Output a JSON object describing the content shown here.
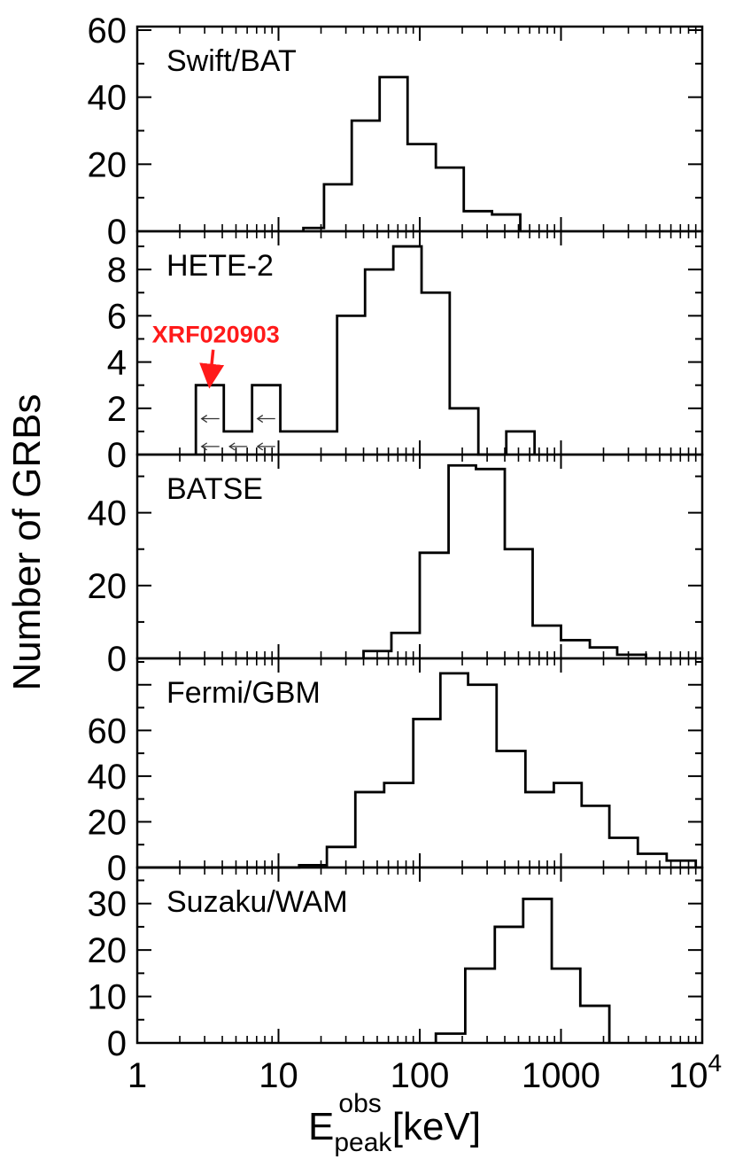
{
  "figure": {
    "ylabel": "Number of GRBs",
    "xlabel": {
      "main": "E",
      "sup": "obs",
      "sub": "peak",
      "unit": "[keV]"
    },
    "xaxis": {
      "scale": "log",
      "range": [
        1,
        10000
      ],
      "tick_labels": [
        {
          "value": 1,
          "base": "1",
          "exp": ""
        },
        {
          "value": 10,
          "base": "10",
          "exp": ""
        },
        {
          "value": 100,
          "base": "100",
          "exp": ""
        },
        {
          "value": 1000,
          "base": "1000",
          "exp": ""
        },
        {
          "value": 10000,
          "base": "10",
          "exp": "4"
        }
      ]
    },
    "colors": {
      "line": "#000000",
      "annotation": "#ff1a1a"
    }
  },
  "chart_data": [
    {
      "type": "histogram",
      "title": "Swift/BAT",
      "ylim": [
        0,
        60
      ],
      "yticks": [
        0,
        20,
        40,
        60
      ],
      "bins": [
        {
          "x0": 15,
          "x1": 21,
          "y": 1
        },
        {
          "x0": 21,
          "x1": 33,
          "y": 14
        },
        {
          "x0": 33,
          "x1": 52,
          "y": 33
        },
        {
          "x0": 52,
          "x1": 82,
          "y": 46
        },
        {
          "x0": 82,
          "x1": 130,
          "y": 26
        },
        {
          "x0": 130,
          "x1": 205,
          "y": 19
        },
        {
          "x0": 205,
          "x1": 325,
          "y": 6
        },
        {
          "x0": 325,
          "x1": 515,
          "y": 5
        }
      ]
    },
    {
      "type": "histogram",
      "title": "HETE-2",
      "ylim": [
        0,
        9.5
      ],
      "yticks": [
        0,
        2,
        4,
        6,
        8
      ],
      "bins": [
        {
          "x0": 2.6,
          "x1": 4.1,
          "y": 3
        },
        {
          "x0": 4.1,
          "x1": 6.5,
          "y": 1
        },
        {
          "x0": 6.5,
          "x1": 10.3,
          "y": 3
        },
        {
          "x0": 10.3,
          "x1": 26,
          "y": 1
        },
        {
          "x0": 26,
          "x1": 41,
          "y": 6
        },
        {
          "x0": 41,
          "x1": 65,
          "y": 8
        },
        {
          "x0": 65,
          "x1": 103,
          "y": 9
        },
        {
          "x0": 103,
          "x1": 163,
          "y": 7
        },
        {
          "x0": 163,
          "x1": 260,
          "y": 2
        },
        {
          "x0": 260,
          "x1": 410,
          "y": 0
        },
        {
          "x0": 410,
          "x1": 650,
          "y": 1
        }
      ],
      "upper_limit_markers": [
        {
          "x": 3.3,
          "y": 1.55
        },
        {
          "x": 8.2,
          "y": 1.55
        },
        {
          "x": 3.3,
          "y": 0.35
        },
        {
          "x": 5.2,
          "y": 0.35
        },
        {
          "x": 8.2,
          "y": 0.35
        }
      ],
      "annotation": {
        "text": "XRF020903",
        "x": 3.3,
        "y": 3
      }
    },
    {
      "type": "histogram",
      "title": "BATSE",
      "ylim": [
        0,
        55
      ],
      "yticks": [
        0,
        20,
        40
      ],
      "bins": [
        {
          "x0": 40,
          "x1": 63,
          "y": 2
        },
        {
          "x0": 63,
          "x1": 100,
          "y": 7
        },
        {
          "x0": 100,
          "x1": 160,
          "y": 29
        },
        {
          "x0": 160,
          "x1": 250,
          "y": 53
        },
        {
          "x0": 250,
          "x1": 400,
          "y": 52
        },
        {
          "x0": 400,
          "x1": 630,
          "y": 30
        },
        {
          "x0": 630,
          "x1": 1000,
          "y": 9
        },
        {
          "x0": 1000,
          "x1": 1600,
          "y": 5
        },
        {
          "x0": 1600,
          "x1": 2500,
          "y": 3
        },
        {
          "x0": 2500,
          "x1": 4000,
          "y": 1
        }
      ]
    },
    {
      "type": "histogram",
      "title": "Fermi/GBM",
      "ylim": [
        0,
        90
      ],
      "yticks": [
        0,
        20,
        40,
        60
      ],
      "bins": [
        {
          "x0": 1,
          "x1": 14,
          "y": 0
        },
        {
          "x0": 14,
          "x1": 22,
          "y": 1
        },
        {
          "x0": 22,
          "x1": 35,
          "y": 9
        },
        {
          "x0": 35,
          "x1": 56,
          "y": 33
        },
        {
          "x0": 56,
          "x1": 90,
          "y": 37
        },
        {
          "x0": 90,
          "x1": 140,
          "y": 65
        },
        {
          "x0": 140,
          "x1": 220,
          "y": 85
        },
        {
          "x0": 220,
          "x1": 350,
          "y": 80
        },
        {
          "x0": 350,
          "x1": 560,
          "y": 51
        },
        {
          "x0": 560,
          "x1": 890,
          "y": 33
        },
        {
          "x0": 890,
          "x1": 1400,
          "y": 37
        },
        {
          "x0": 1400,
          "x1": 2200,
          "y": 27
        },
        {
          "x0": 2200,
          "x1": 3500,
          "y": 13
        },
        {
          "x0": 3500,
          "x1": 5600,
          "y": 6
        },
        {
          "x0": 5600,
          "x1": 9000,
          "y": 3
        }
      ]
    },
    {
      "type": "histogram",
      "title": "Suzaku/WAM",
      "ylim": [
        0,
        37
      ],
      "yticks": [
        0,
        10,
        20,
        30
      ],
      "bins": [
        {
          "x0": 130,
          "x1": 210,
          "y": 2
        },
        {
          "x0": 210,
          "x1": 340,
          "y": 16
        },
        {
          "x0": 340,
          "x1": 540,
          "y": 25
        },
        {
          "x0": 540,
          "x1": 860,
          "y": 31
        },
        {
          "x0": 860,
          "x1": 1370,
          "y": 16
        },
        {
          "x0": 1370,
          "x1": 2200,
          "y": 8
        }
      ]
    }
  ]
}
